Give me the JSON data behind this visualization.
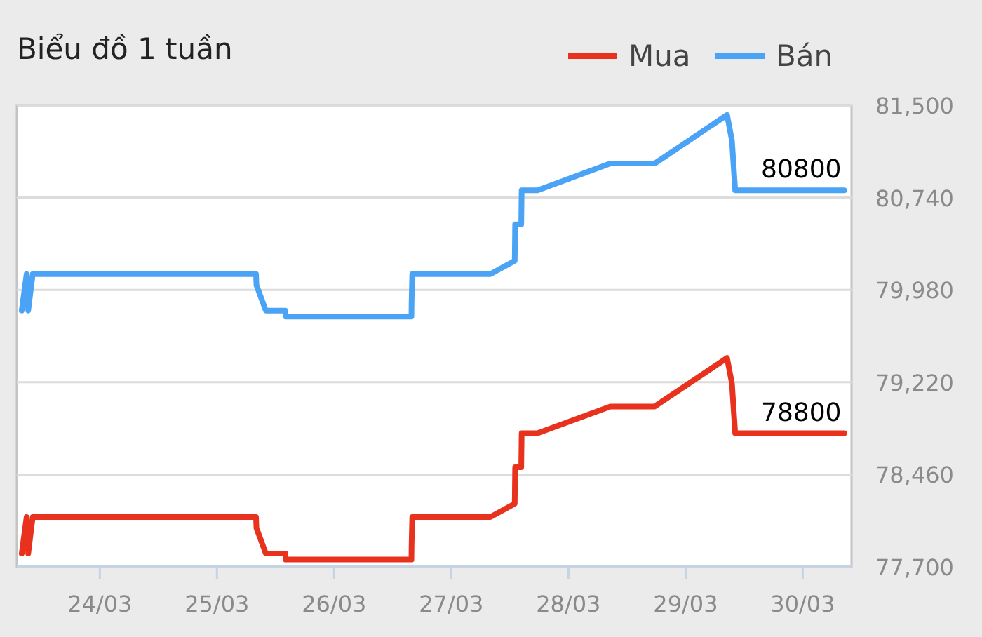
{
  "chart_data": {
    "type": "line",
    "title": "Biểu đồ 1 tuần",
    "x": [
      "--03-23T08:00",
      "--03-23T09:00",
      "--03-23T09:20",
      "--03-23T10:15",
      "--03-25T08:00",
      "--03-25T08:05",
      "--03-25T10:00",
      "--03-25T14:00",
      "--03-25T14:05",
      "--03-26T15:50",
      "--03-26T15:52",
      "--03-26T16:00",
      "--03-27T08:00",
      "--03-27T13:00",
      "--03-27T13:05",
      "--03-27T14:20",
      "--03-27T14:25",
      "--03-27T17:40",
      "--03-28T08:35",
      "--03-28T17:40",
      "--03-29T08:30",
      "--03-29T09:30",
      "--03-29T10:10",
      "--03-30T08:30"
    ],
    "series": [
      {
        "name": "Mua",
        "color": "#e8321e",
        "values": [
          77810,
          78110,
          77810,
          78110,
          78110,
          78020,
          77810,
          77810,
          77760,
          77760,
          77880,
          78110,
          78110,
          78220,
          78520,
          78520,
          78800,
          78800,
          79020,
          79020,
          79420,
          79210,
          78800,
          78800
        ]
      },
      {
        "name": "Bán",
        "color": "#4ba3f5",
        "values": [
          79810,
          80110,
          79810,
          80110,
          80110,
          80020,
          79810,
          79810,
          79760,
          79760,
          79880,
          80110,
          80110,
          80220,
          80520,
          80520,
          80800,
          80800,
          81020,
          81020,
          81420,
          81210,
          80800,
          80800
        ]
      }
    ],
    "xlim": [
      "--03-23T07:00",
      "--03-30T10:00"
    ],
    "xticks": [
      {
        "value": "--03-24",
        "label": "24/03"
      },
      {
        "value": "--03-25",
        "label": "25/03"
      },
      {
        "value": "--03-26",
        "label": "26/03"
      },
      {
        "value": "--03-27",
        "label": "27/03"
      },
      {
        "value": "--03-28",
        "label": "28/03"
      },
      {
        "value": "--03-29",
        "label": "29/03"
      },
      {
        "value": "--03-30",
        "label": "30/03"
      }
    ],
    "ylim": [
      77700,
      81500
    ],
    "yticks": [
      {
        "value": 77700,
        "label": "77,700"
      },
      {
        "value": 78460,
        "label": "78,460"
      },
      {
        "value": 79220,
        "label": "79,220"
      },
      {
        "value": 79980,
        "label": "79,980"
      },
      {
        "value": 80740,
        "label": "80,740"
      },
      {
        "value": 81500,
        "label": "81,500"
      }
    ],
    "grid": "y",
    "legend": "top right",
    "line_style": "solid",
    "marker": "none",
    "annotations": [
      {
        "text": "80800",
        "x": "--03-30T08:30",
        "y": 80800
      },
      {
        "text": "78800",
        "x": "--03-30T08:30",
        "y": 78800
      }
    ]
  }
}
